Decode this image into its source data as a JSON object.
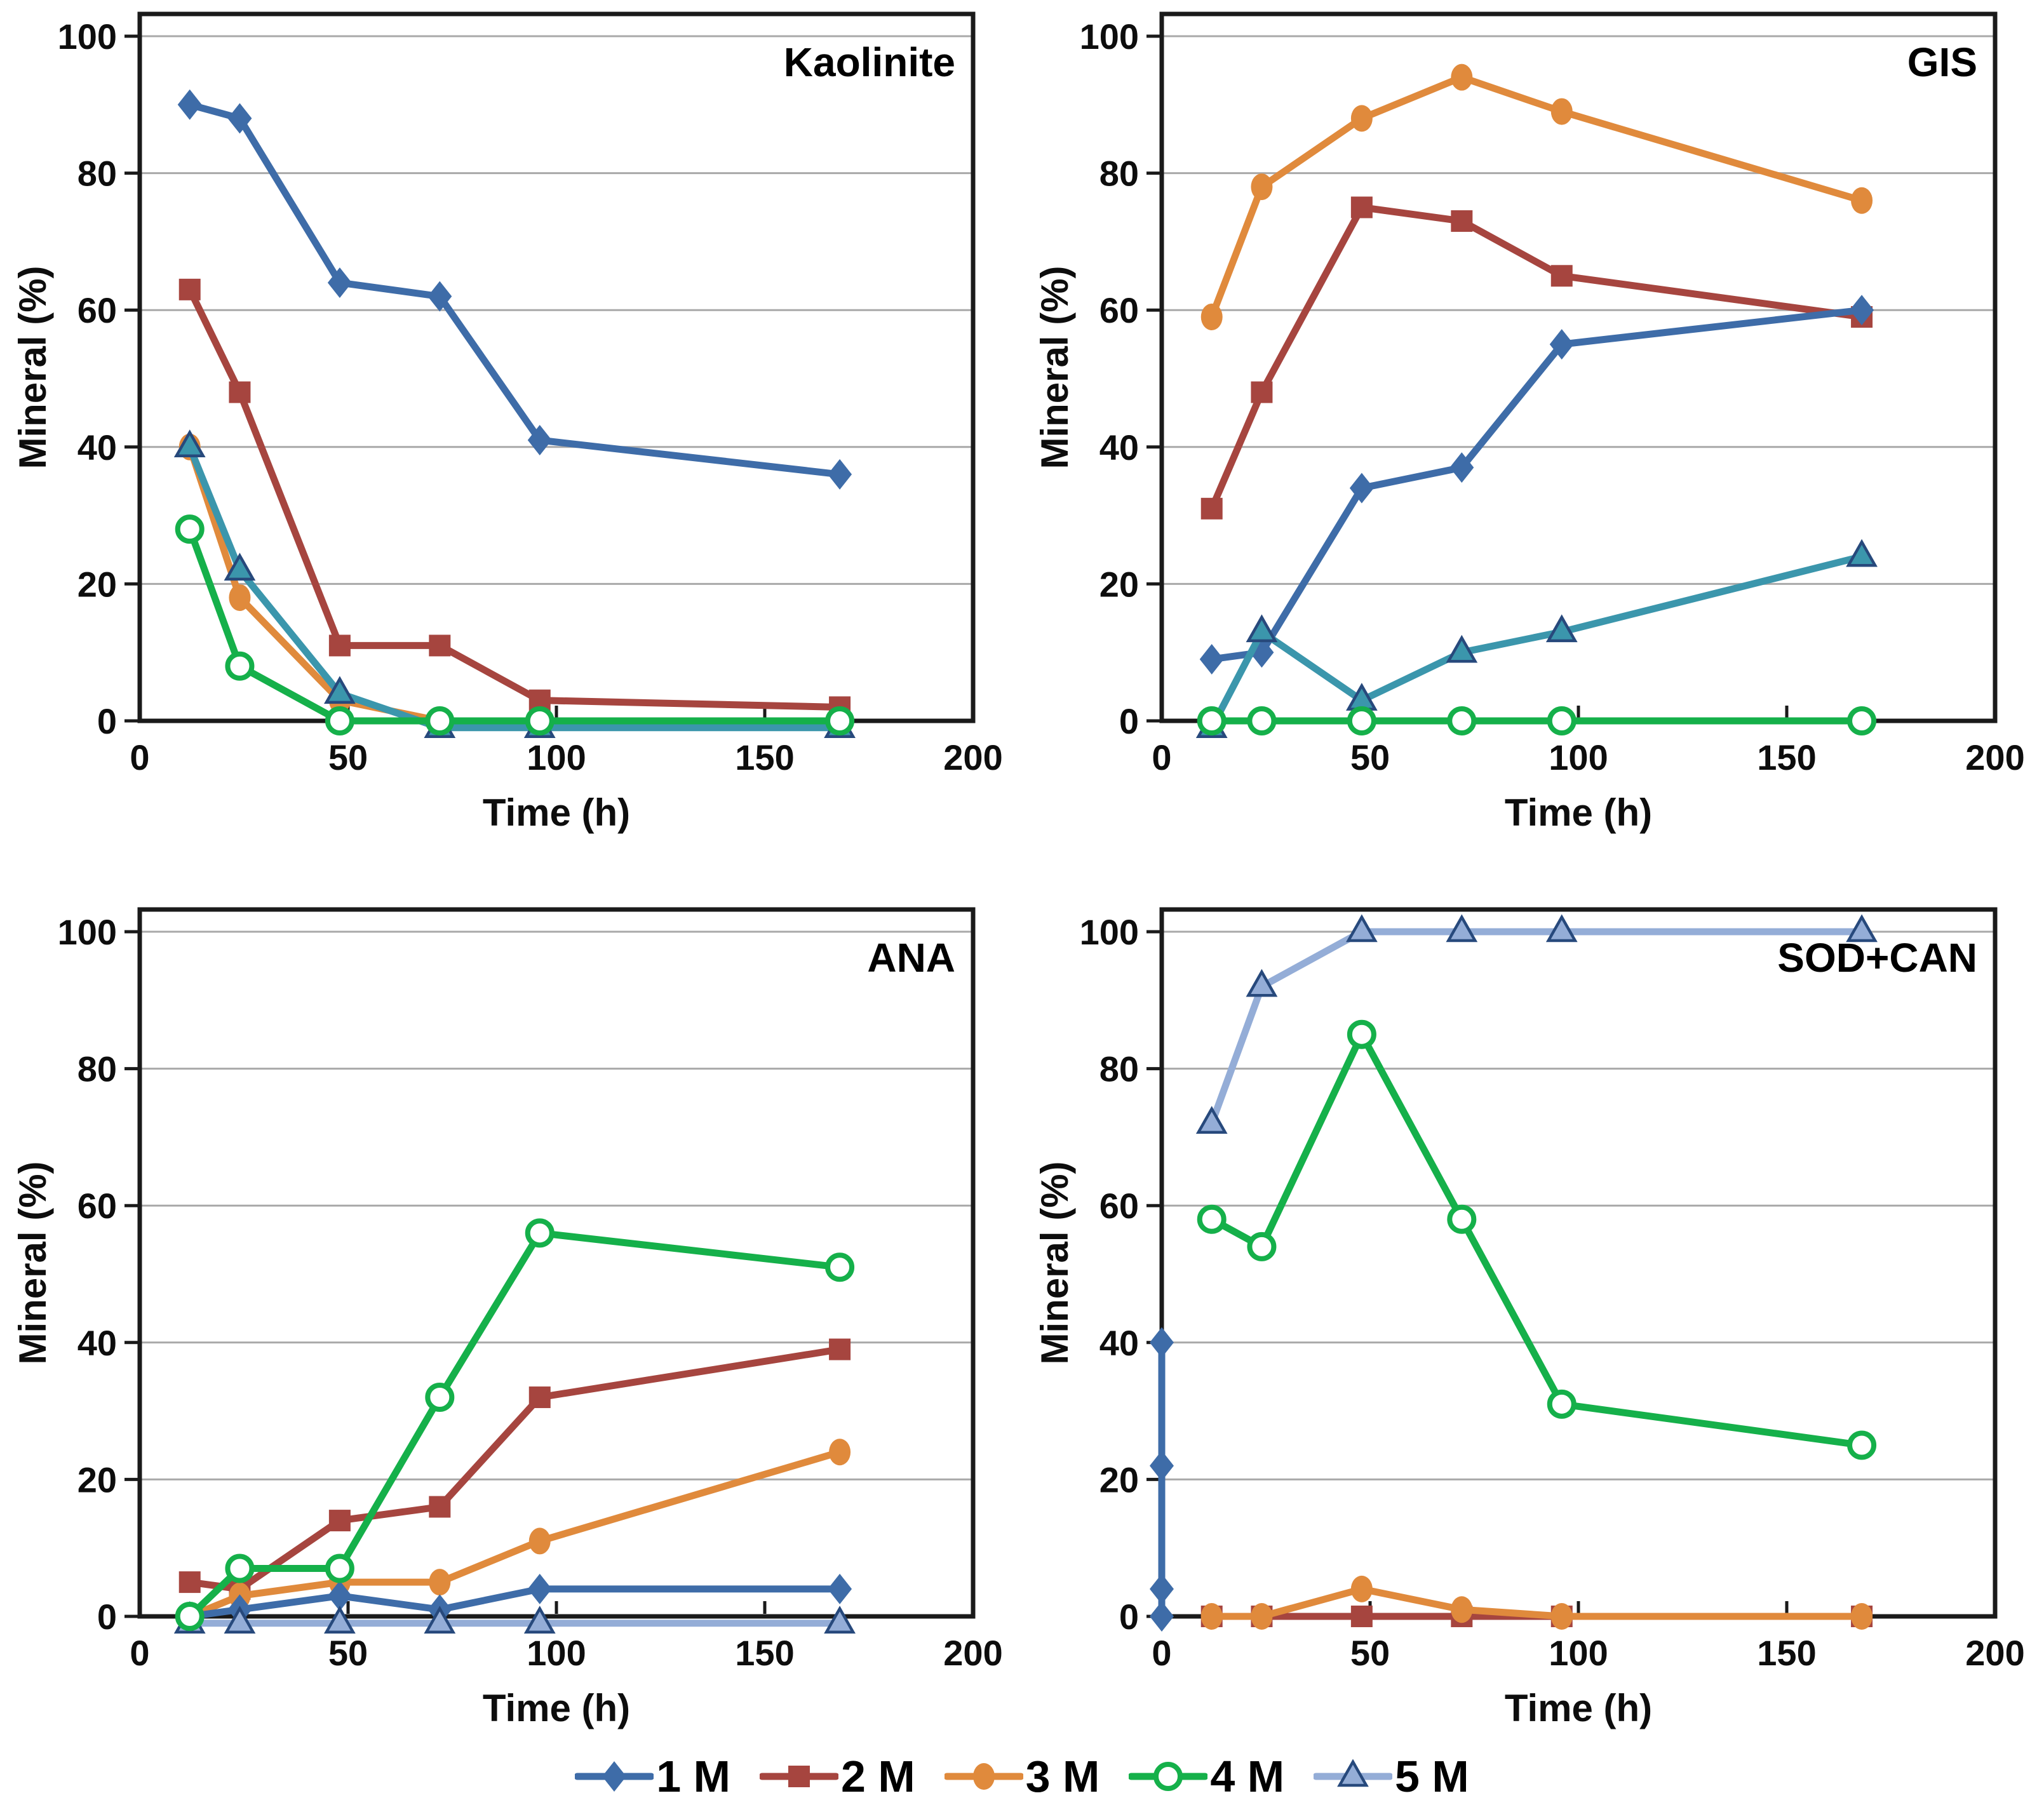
{
  "page": {
    "background": "#ffffff"
  },
  "styles": {
    "axis_color": "#1a1a1a",
    "grid_color": "#a9a9a9",
    "tick_label_color": "#0d0d0d",
    "marker_edge_navy": "#27497c",
    "teal_5m_top_panels": "#3b96ac",
    "series": {
      "1 M": {
        "color": "#3e6ca8",
        "marker": "diamond"
      },
      "2 M": {
        "color": "#a6453f",
        "marker": "square"
      },
      "3 M": {
        "color": "#e08a3c",
        "marker": "circle"
      },
      "4 M": {
        "color": "#15b04a",
        "marker": "open-circle"
      },
      "5 M": {
        "color": "#94add7",
        "marker": "triangle",
        "marker_fill": "#94add7",
        "marker_edge": "#27497c"
      }
    }
  },
  "chart_data": [
    {
      "type": "line",
      "title": "Kaolinite",
      "xlabel": "Time (h)",
      "ylabel": "Mineral (%)",
      "xlim": [
        0,
        200
      ],
      "ylim": [
        0,
        100
      ],
      "xticks": [
        0,
        50,
        100,
        150,
        200
      ],
      "yticks": [
        0,
        20,
        40,
        60,
        80,
        100
      ],
      "grid": "horizontal",
      "x": [
        12,
        24,
        48,
        72,
        96,
        168
      ],
      "series": [
        {
          "name": "2 M",
          "values": [
            63,
            48,
            11,
            11,
            3,
            2
          ]
        },
        {
          "name": "3 M",
          "values": [
            40,
            18,
            3,
            0,
            0,
            0
          ]
        },
        {
          "name": "1 M",
          "values": [
            90,
            88,
            64,
            62,
            41,
            36
          ]
        },
        {
          "name": "5 M",
          "values": [
            40,
            22,
            4,
            0,
            0,
            0
          ]
        },
        {
          "name": "4 M",
          "values": [
            28,
            8,
            0,
            0,
            0,
            0
          ]
        }
      ],
      "series_color_overrides": {
        "5 M": "#3b96ac"
      }
    },
    {
      "type": "line",
      "title": "GIS",
      "xlabel": "Time (h)",
      "ylabel": "Mineral (%)",
      "xlim": [
        0,
        200
      ],
      "ylim": [
        0,
        100
      ],
      "xticks": [
        0,
        50,
        100,
        150,
        200
      ],
      "yticks": [
        0,
        20,
        40,
        60,
        80,
        100
      ],
      "grid": "horizontal",
      "x": [
        12,
        24,
        48,
        72,
        96,
        168
      ],
      "series": [
        {
          "name": "2 M",
          "values": [
            31,
            48,
            75,
            73,
            65,
            59
          ]
        },
        {
          "name": "3 M",
          "values": [
            59,
            78,
            88,
            94,
            89,
            76
          ]
        },
        {
          "name": "1 M",
          "values": [
            9,
            10,
            34,
            37,
            55,
            60
          ]
        },
        {
          "name": "5 M",
          "values": [
            0,
            13,
            3,
            10,
            13,
            24
          ]
        },
        {
          "name": "4 M",
          "values": [
            0,
            0,
            0,
            0,
            0,
            0
          ]
        }
      ],
      "series_color_overrides": {
        "5 M": "#3b96ac"
      }
    },
    {
      "type": "line",
      "title": "ANA",
      "xlabel": "Time (h)",
      "ylabel": "Mineral (%)",
      "xlim": [
        0,
        200
      ],
      "ylim": [
        0,
        100
      ],
      "xticks": [
        0,
        50,
        100,
        150,
        200
      ],
      "yticks": [
        0,
        20,
        40,
        60,
        80,
        100
      ],
      "grid": "horizontal",
      "x": [
        12,
        24,
        48,
        72,
        96,
        168
      ],
      "series": [
        {
          "name": "2 M",
          "values": [
            5,
            4,
            14,
            16,
            32,
            39
          ]
        },
        {
          "name": "3 M",
          "values": [
            0,
            3,
            5,
            5,
            11,
            24
          ]
        },
        {
          "name": "1 M",
          "values": [
            0,
            1,
            3,
            1,
            4,
            4
          ]
        },
        {
          "name": "5 M",
          "values": [
            0,
            0,
            0,
            0,
            0,
            0
          ]
        },
        {
          "name": "4 M",
          "values": [
            0,
            7,
            7,
            32,
            56,
            51
          ]
        }
      ],
      "series_color_overrides": {}
    },
    {
      "type": "line",
      "title": "SOD+CAN",
      "xlabel": "Time (h)",
      "ylabel": "Mineral (%)",
      "xlim": [
        0,
        200
      ],
      "ylim": [
        0,
        100
      ],
      "xticks": [
        0,
        50,
        100,
        150,
        200
      ],
      "yticks": [
        0,
        20,
        40,
        60,
        80,
        100
      ],
      "grid": "horizontal",
      "x": [
        12,
        24,
        48,
        72,
        96,
        168
      ],
      "series": [
        {
          "name": "2 M",
          "values": [
            0,
            0,
            0,
            0,
            0,
            0
          ]
        },
        {
          "name": "3 M",
          "values": [
            0,
            0,
            4,
            1,
            0,
            0
          ]
        },
        {
          "name": "1 M",
          "x": [
            0,
            0,
            0,
            0
          ],
          "values": [
            40,
            22,
            4,
            0
          ]
        },
        {
          "name": "5 M",
          "values": [
            72,
            92,
            100,
            100,
            100,
            100
          ]
        },
        {
          "name": "4 M",
          "values": [
            58,
            54,
            85,
            58,
            31,
            25
          ]
        }
      ],
      "series_color_overrides": {}
    }
  ],
  "legend": {
    "items": [
      {
        "series": "1 M",
        "label": "1 M"
      },
      {
        "series": "2 M",
        "label": "2 M"
      },
      {
        "series": "3 M",
        "label": "3 M"
      },
      {
        "series": "4 M",
        "label": "4 M"
      },
      {
        "series": "5 M",
        "label": "5 M"
      }
    ]
  }
}
